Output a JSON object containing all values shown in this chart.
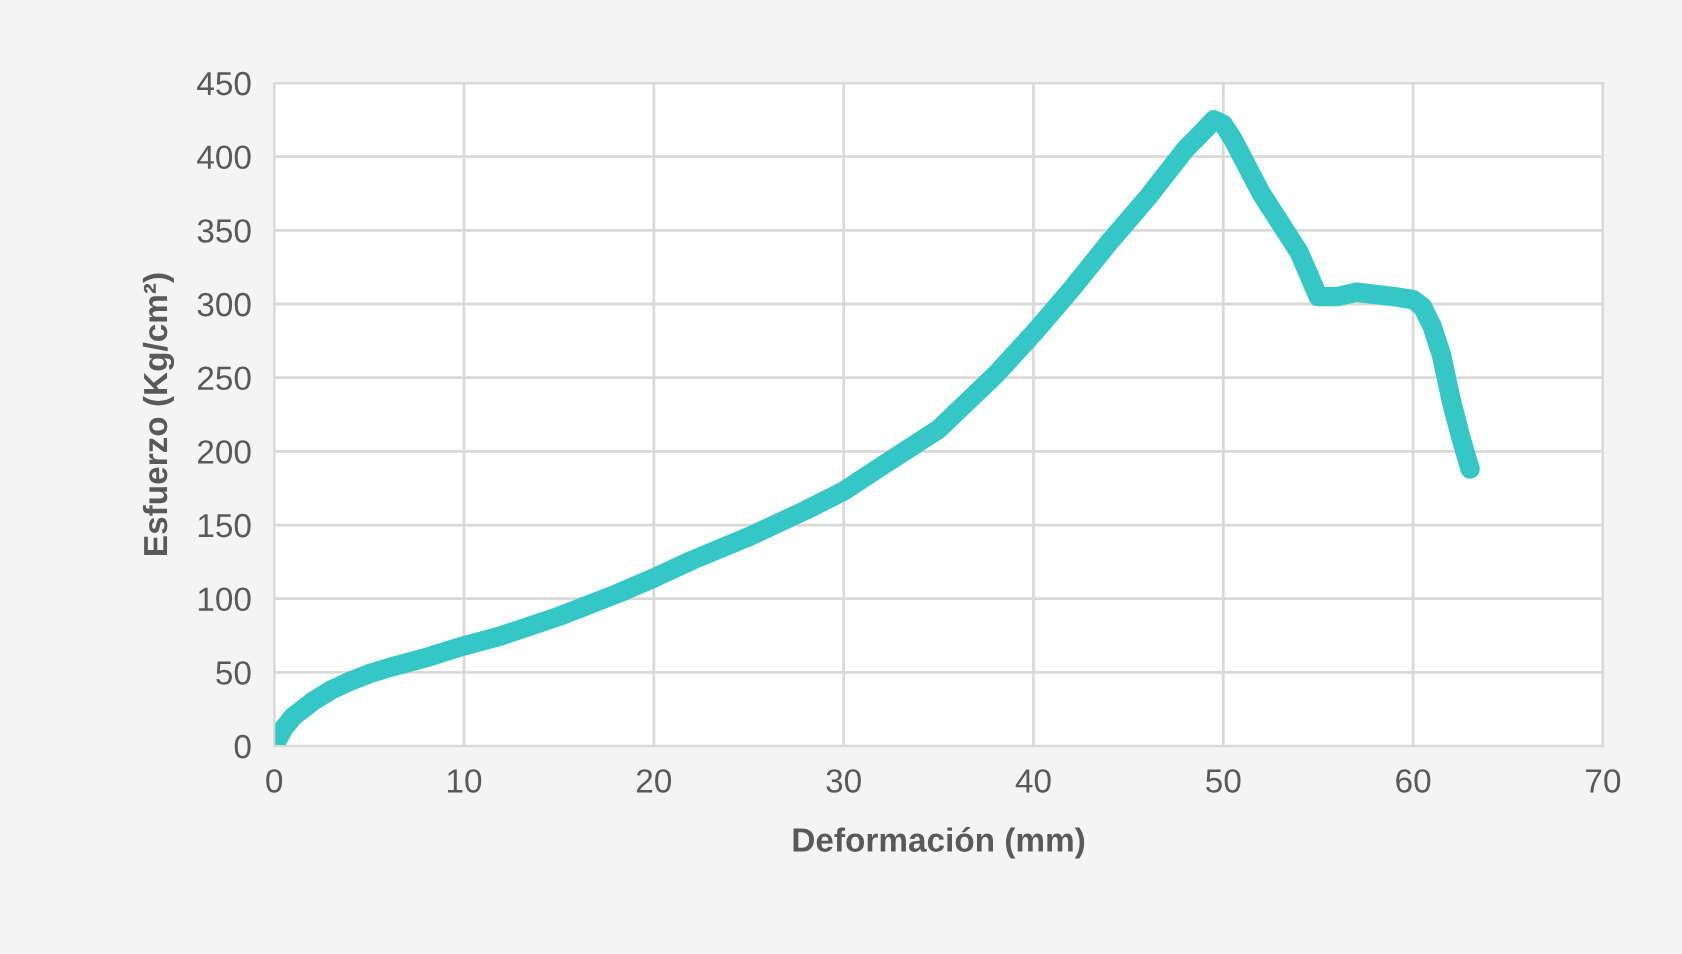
{
  "chart_data": {
    "type": "line",
    "xlabel": "Deformación (mm)",
    "ylabel": "Esfuerzo (Kg/cm²)",
    "xlim": [
      0,
      70
    ],
    "xticks": [
      0,
      10,
      20,
      30,
      40,
      50,
      60,
      70
    ],
    "ylim": [
      0,
      450
    ],
    "yticks": [
      0,
      50,
      100,
      150,
      200,
      250,
      300,
      350,
      400,
      450
    ],
    "grid": true,
    "marker": "none",
    "line_style": "solid",
    "series": [
      {
        "color": "#35c6c6",
        "x": [
          0,
          0.5,
          1,
          2,
          3,
          4,
          5,
          6,
          8,
          10,
          12,
          15,
          18,
          20,
          22,
          25,
          28,
          30,
          32,
          35,
          38,
          40,
          42,
          44,
          46,
          48,
          49,
          49.5,
          50,
          50.5,
          52,
          54,
          55,
          56,
          57,
          59,
          60,
          60.5,
          61,
          61.5,
          62,
          62.5,
          63
        ],
        "values": [
          0,
          12,
          20,
          30,
          38,
          44,
          49,
          53,
          60,
          68,
          75,
          88,
          103,
          114,
          126,
          142,
          160,
          173,
          190,
          215,
          252,
          280,
          310,
          342,
          372,
          405,
          418,
          425,
          422,
          412,
          375,
          335,
          305,
          305,
          308,
          305,
          303,
          298,
          285,
          265,
          235,
          210,
          188
        ]
      }
    ]
  }
}
